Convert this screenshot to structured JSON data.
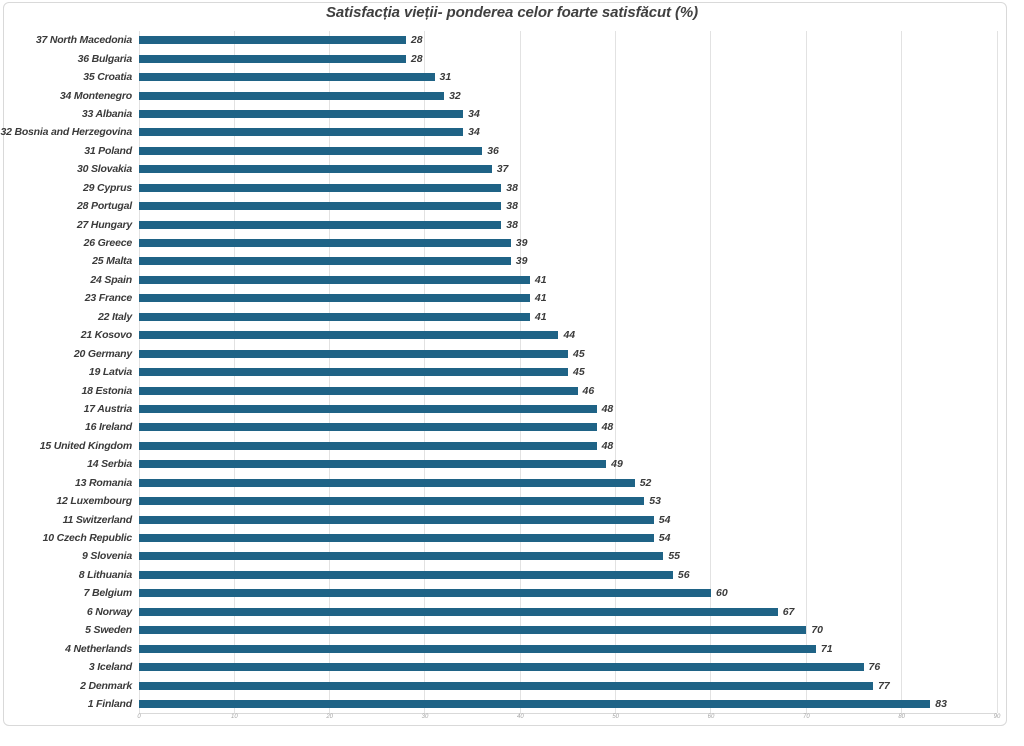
{
  "window": {
    "background": "#ffffff",
    "frame_border": "#d9d9d9"
  },
  "chart_data": {
    "type": "bar",
    "orientation": "horizontal",
    "title": "Satisfacția vieții- ponderea celor foarte satisfăcut (%)",
    "categories": [
      "37 North Macedonia",
      "36 Bulgaria",
      "35 Croatia",
      "34 Montenegro",
      "33 Albania",
      "32 Bosnia and Herzegovina",
      "31 Poland",
      "30 Slovakia",
      "29 Cyprus",
      "28 Portugal",
      "27 Hungary",
      "26 Greece",
      "25 Malta",
      "24 Spain",
      "23 France",
      "22 Italy",
      "21 Kosovo",
      "20 Germany",
      "19 Latvia",
      "18 Estonia",
      "17 Austria",
      "16 Ireland",
      "15 United Kingdom",
      "14 Serbia",
      "13 Romania",
      "12 Luxembourg",
      "11 Switzerland",
      "10 Czech Republic",
      "9 Slovenia",
      "8 Lithuania",
      "7 Belgium",
      "6 Norway",
      "5 Sweden",
      "4 Netherlands",
      "3 Iceland",
      "2 Denmark",
      "1 Finland"
    ],
    "values": [
      28,
      28,
      31,
      32,
      34,
      34,
      36,
      37,
      38,
      38,
      38,
      39,
      39,
      41,
      41,
      41,
      44,
      45,
      45,
      46,
      48,
      48,
      48,
      49,
      52,
      53,
      54,
      54,
      55,
      56,
      60,
      67,
      70,
      71,
      76,
      77,
      83
    ],
    "data_labels_shown": true,
    "xlim": [
      0,
      90
    ],
    "x_ticks": [
      "0",
      "10",
      "20",
      "30",
      "40",
      "50",
      "60",
      "70",
      "80",
      "90"
    ],
    "grid": "vertical",
    "legend": "none",
    "bar_color": "#1f6386",
    "title_color": "#404040",
    "label_color": "#3a3a3a",
    "tick_color": "#a6a6a6",
    "gridline_color": "#e2e2e2"
  }
}
